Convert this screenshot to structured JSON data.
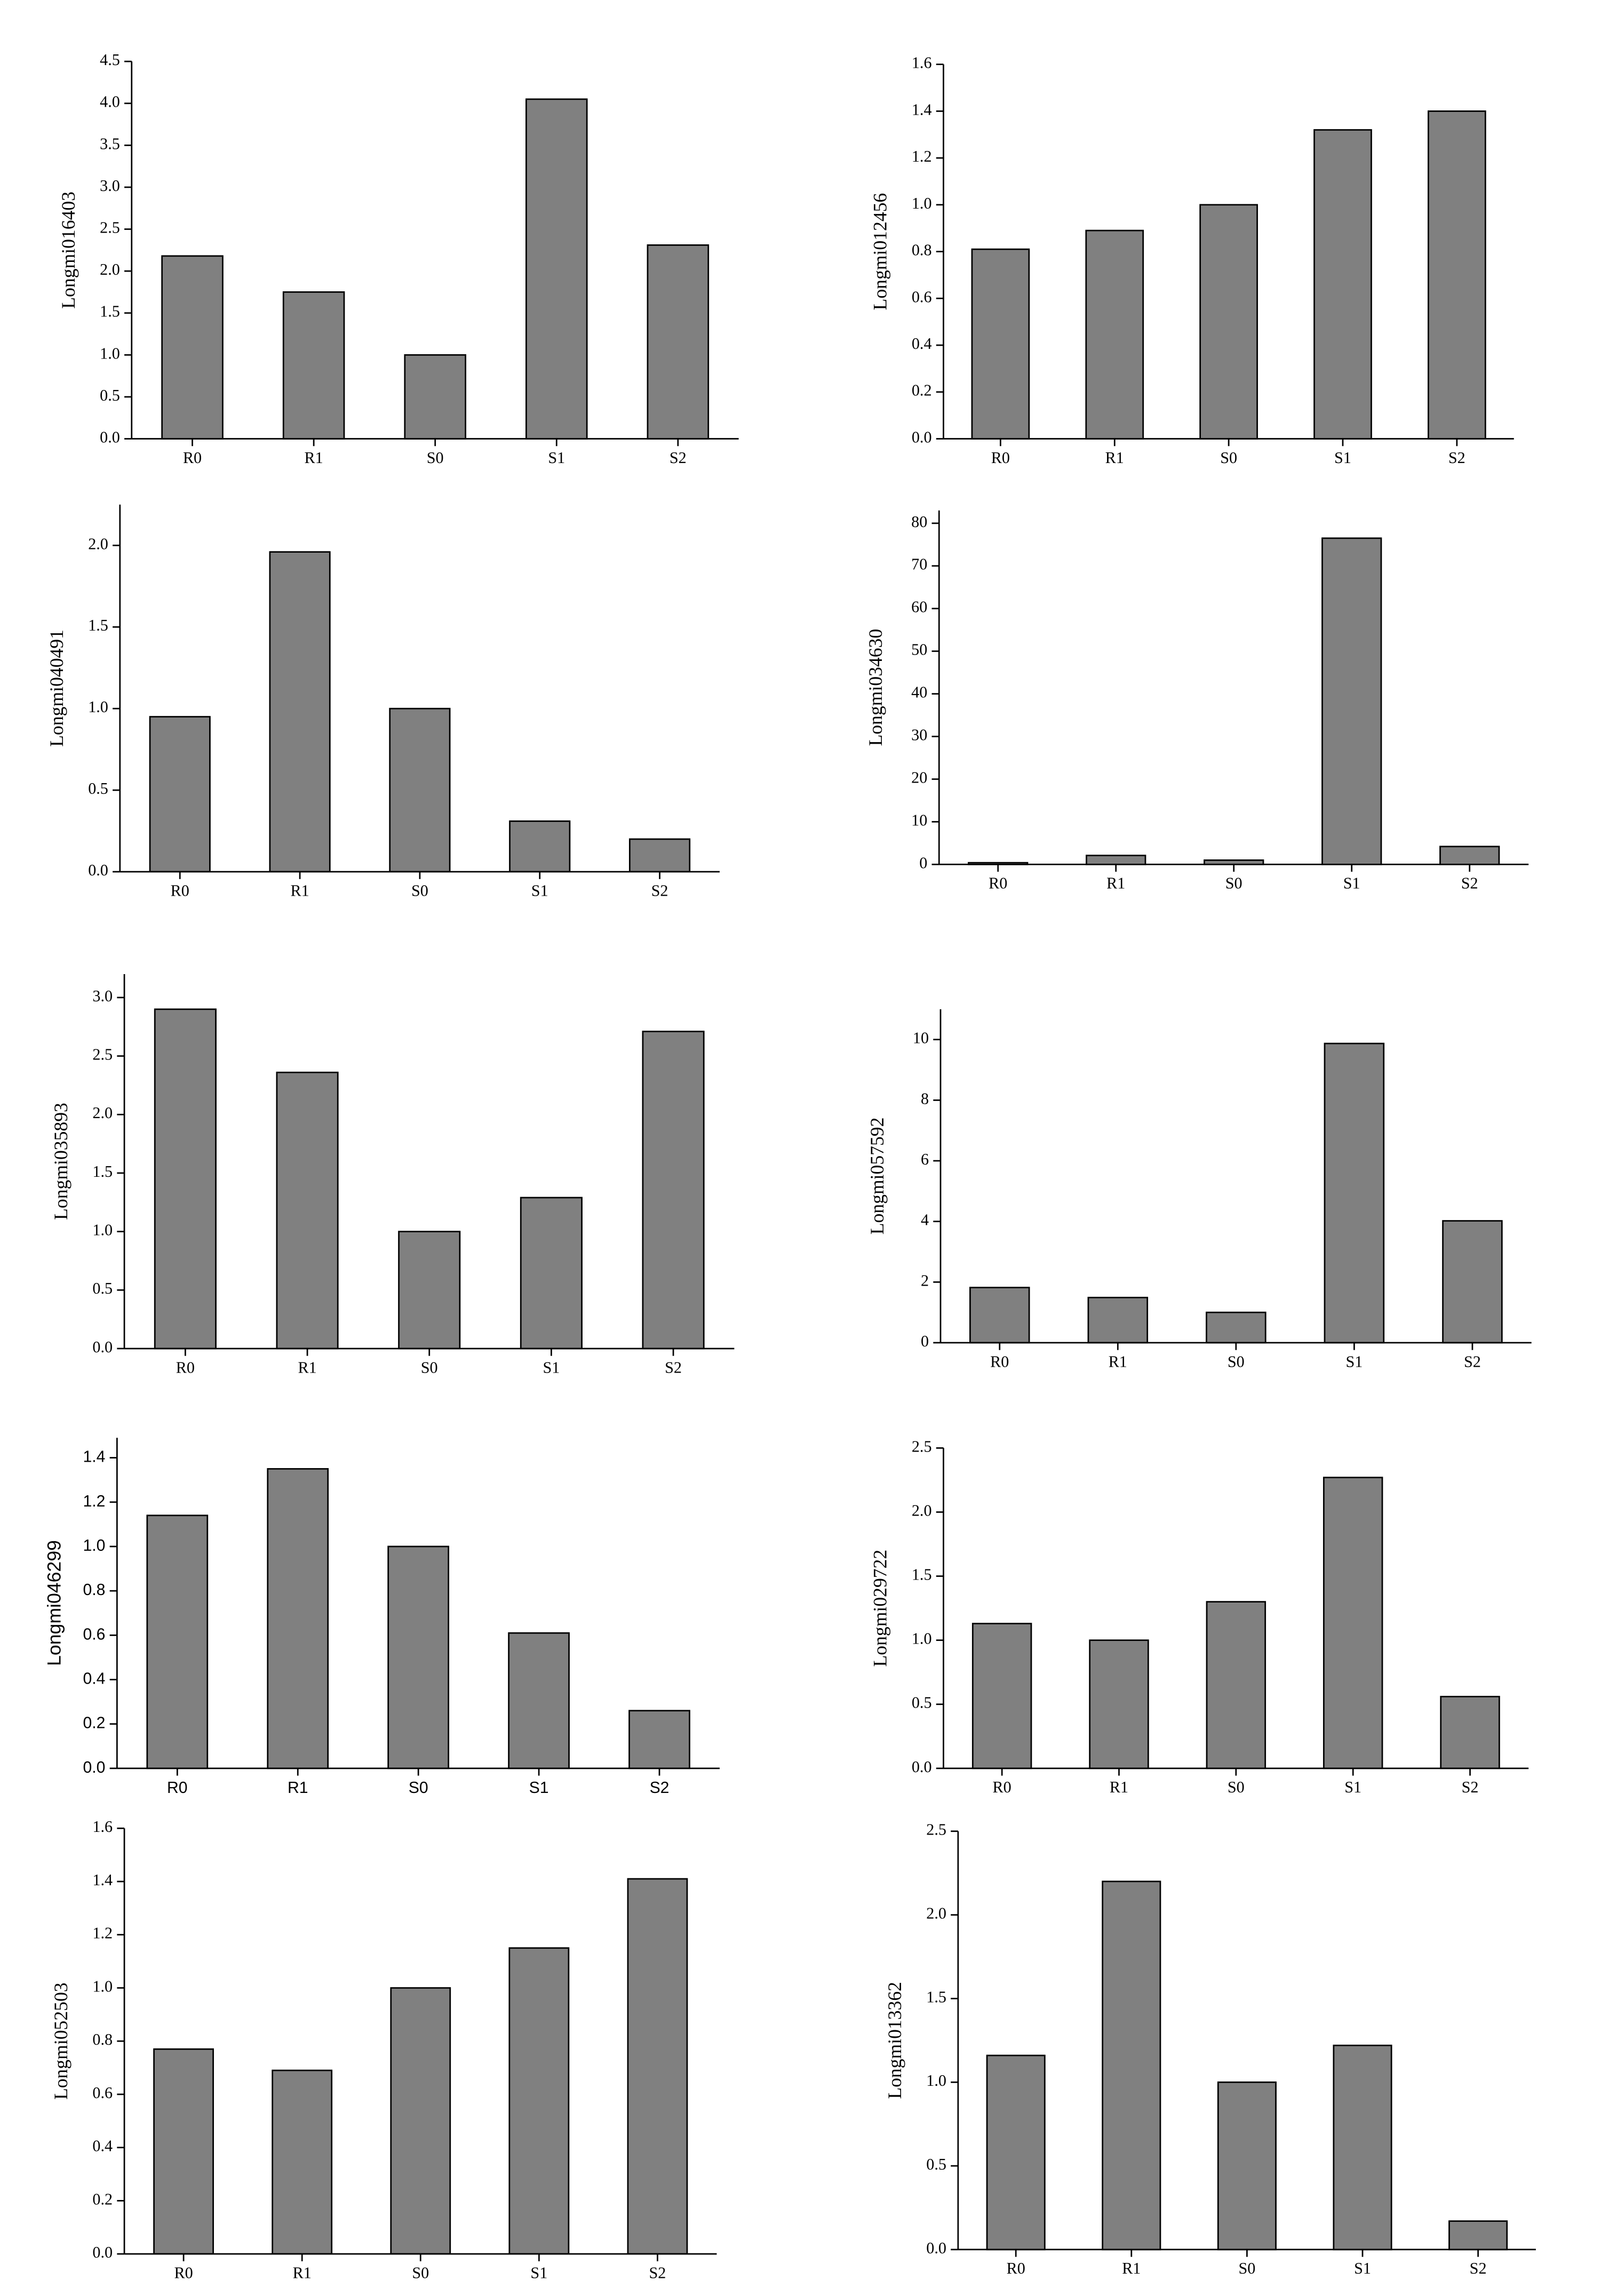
{
  "chart_data": [
    {
      "type": "bar",
      "ylabel": "Longmi016403",
      "categories": [
        "R0",
        "R1",
        "S0",
        "S1",
        "S2"
      ],
      "values": [
        2.18,
        1.75,
        1.0,
        4.05,
        2.31
      ],
      "color": "#808080",
      "ylim": [
        0,
        4.5
      ],
      "yticks": [
        {
          "value": 0,
          "label": "0.0"
        },
        0.5,
        {
          "value": 1,
          "label": "1.0"
        },
        1.5,
        {
          "value": 2,
          "label": "2.0"
        },
        2.5,
        {
          "value": 3,
          "label": "3.0"
        },
        3.5,
        {
          "value": 4,
          "label": "4.0"
        },
        4.5
      ]
    },
    {
      "type": "bar",
      "ylabel": "Longmi012456",
      "categories": [
        "R0",
        "R1",
        "S0",
        "S1",
        "S2"
      ],
      "values": [
        0.81,
        0.89,
        1.0,
        1.32,
        1.4
      ],
      "color": "#808080",
      "ylim": [
        0,
        1.6
      ],
      "yticks": [
        {
          "value": 0,
          "label": "0.0"
        },
        0.2,
        0.4,
        0.6,
        0.8,
        {
          "value": 1,
          "label": "1.0"
        },
        1.2,
        1.4,
        1.6
      ]
    },
    {
      "type": "bar",
      "ylabel": "Longmi040491",
      "categories": [
        "R0",
        "R1",
        "S0",
        "S1",
        "S2"
      ],
      "values": [
        0.95,
        1.96,
        1.0,
        0.31,
        0.2
      ],
      "color": "#808080",
      "ylim": [
        0,
        2.25
      ],
      "yticks": [
        {
          "value": 0,
          "label": "0.0"
        },
        0.5,
        {
          "value": 1,
          "label": "1.0"
        },
        1.5,
        {
          "value": 2,
          "label": "2.0"
        }
      ]
    },
    {
      "type": "bar",
      "ylabel": "Longmi034630",
      "categories": [
        "R0",
        "R1",
        "S0",
        "S1",
        "S2"
      ],
      "values": [
        0.4,
        2.1,
        1.0,
        76.5,
        4.2
      ],
      "color": "#808080",
      "ylim": [
        0,
        83
      ],
      "yticks": [
        0,
        10,
        20,
        30,
        40,
        50,
        60,
        70,
        80
      ]
    },
    {
      "type": "bar",
      "ylabel": "Longmi035893",
      "categories": [
        "R0",
        "R1",
        "S0",
        "S1",
        "S2"
      ],
      "values": [
        2.9,
        2.36,
        1.0,
        1.29,
        2.71
      ],
      "color": "#808080",
      "ylim": [
        0,
        3.2
      ],
      "yticks": [
        {
          "value": 0,
          "label": "0.0"
        },
        0.5,
        {
          "value": 1,
          "label": "1.0"
        },
        1.5,
        {
          "value": 2,
          "label": "2.0"
        },
        2.5,
        {
          "value": 3,
          "label": "3.0"
        }
      ]
    },
    {
      "type": "bar",
      "ylabel": "Longmi057592",
      "categories": [
        "R0",
        "R1",
        "S0",
        "S1",
        "S2"
      ],
      "values": [
        1.82,
        1.49,
        1.0,
        9.87,
        4.02
      ],
      "color": "#808080",
      "ylim": [
        0,
        11
      ],
      "yticks": [
        0,
        2,
        4,
        6,
        8,
        10
      ]
    },
    {
      "type": "bar",
      "ylabel": "Longmi046299",
      "categories": [
        "R0",
        "R1",
        "S0",
        "S1",
        "S2"
      ],
      "values": [
        1.14,
        1.35,
        1.0,
        0.61,
        0.26
      ],
      "color": "#808080",
      "ylim": [
        0,
        1.49
      ],
      "yticks": [
        {
          "value": 0,
          "label": "0.0"
        },
        0.2,
        0.4,
        0.6,
        0.8,
        {
          "value": 1,
          "label": "1.0"
        },
        1.2,
        1.4
      ]
    },
    {
      "type": "bar",
      "ylabel": "Longmi029722",
      "categories": [
        "R0",
        "R1",
        "S0",
        "S1",
        "S2"
      ],
      "values": [
        1.13,
        1.0,
        1.3,
        2.27,
        0.56
      ],
      "color": "#808080",
      "ylim": [
        0,
        2.5
      ],
      "yticks": [
        {
          "value": 0,
          "label": "0.0"
        },
        0.5,
        {
          "value": 1,
          "label": "1.0"
        },
        1.5,
        {
          "value": 2,
          "label": "2.0"
        },
        2.5
      ]
    },
    {
      "type": "bar",
      "ylabel": "Longmi052503",
      "categories": [
        "R0",
        "R1",
        "S0",
        "S1",
        "S2"
      ],
      "values": [
        0.77,
        0.69,
        1.0,
        1.15,
        1.41
      ],
      "color": "#808080",
      "ylim": [
        0,
        1.6
      ],
      "yticks": [
        {
          "value": 0,
          "label": "0.0"
        },
        0.2,
        0.4,
        0.6,
        0.8,
        {
          "value": 1,
          "label": "1.0"
        },
        1.2,
        1.4,
        1.6
      ]
    },
    {
      "type": "bar",
      "ylabel": "Longmi013362",
      "categories": [
        "R0",
        "R1",
        "S0",
        "S1",
        "S2"
      ],
      "values": [
        1.16,
        2.2,
        1.0,
        1.22,
        0.17
      ],
      "color": "#808080",
      "ylim": [
        0,
        2.5
      ],
      "yticks": [
        {
          "value": 0,
          "label": "0.0"
        },
        0.5,
        {
          "value": 1,
          "label": "1.0"
        },
        1.5,
        {
          "value": 2,
          "label": "2.0"
        },
        2.5
      ]
    }
  ]
}
